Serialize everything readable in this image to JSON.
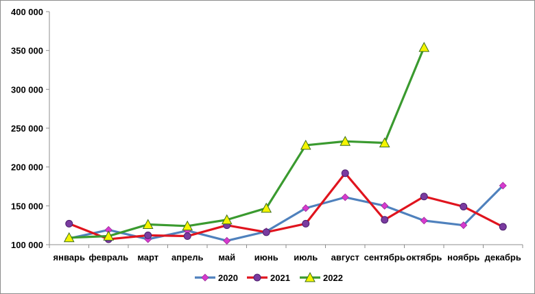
{
  "chart_data": {
    "type": "line",
    "title": "",
    "xlabel": "",
    "ylabel": "",
    "categories": [
      "январь",
      "февраль",
      "март",
      "апрель",
      "май",
      "июнь",
      "июль",
      "август",
      "сентябрь",
      "октябрь",
      "ноябрь",
      "декабрь"
    ],
    "ylim": [
      100000,
      400000
    ],
    "yticks": [
      100000,
      150000,
      200000,
      250000,
      300000,
      350000,
      400000
    ],
    "ytick_labels": [
      "100 000",
      "150 000",
      "200 000",
      "250 000",
      "300 000",
      "350 000",
      "400 000"
    ],
    "grid": false,
    "legend": "bottom",
    "series": [
      {
        "name": "2020",
        "color": "#4F81BD",
        "marker": "diamond",
        "marker_color": "#D63ACF",
        "values": [
          108000,
          119000,
          107000,
          118000,
          105000,
          117000,
          147000,
          161000,
          150000,
          131000,
          125000,
          176000
        ]
      },
      {
        "name": "2021",
        "color": "#E0141E",
        "marker": "circle",
        "marker_color": "#7A3BA0",
        "values": [
          127000,
          107000,
          112000,
          111000,
          125000,
          116000,
          127000,
          192000,
          132000,
          162000,
          149000,
          123000
        ]
      },
      {
        "name": "2022",
        "color": "#3A9A2F",
        "marker": "triangle",
        "marker_color": "#F4F400",
        "values": [
          109000,
          111000,
          126000,
          124000,
          132000,
          147000,
          228000,
          233000,
          231000,
          354000,
          null,
          null
        ]
      }
    ]
  }
}
